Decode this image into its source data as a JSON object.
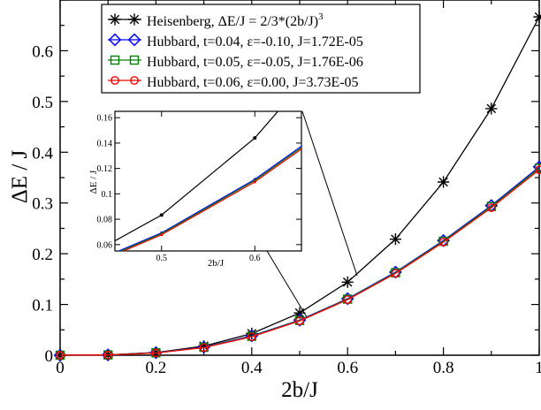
{
  "chart_data": {
    "type": "line",
    "xlabel": "2b/J",
    "ylabel": "ΔE / J",
    "xlim": [
      0,
      1
    ],
    "ylim": [
      0,
      0.7
    ],
    "xticks": [
      "0",
      "0.2",
      "0.4",
      "0.6",
      "0.8",
      "1"
    ],
    "yticks": [
      "0",
      "0.1",
      "0.2",
      "0.3",
      "0.4",
      "0.5",
      "0.6"
    ],
    "grid": false,
    "legend_position": "top-left",
    "x": [
      0,
      0.1,
      0.2,
      0.3,
      0.4,
      0.5,
      0.6,
      0.7,
      0.8,
      0.9,
      1.0
    ],
    "series": [
      {
        "name": "Heisenberg,  ΔE/J = 2/3*(2b/J)",
        "name_superscript": "3",
        "color": "#000000",
        "marker": "star",
        "values": [
          0,
          0.0007,
          0.0053,
          0.018,
          0.0427,
          0.0833,
          0.144,
          0.2287,
          0.3413,
          0.486,
          0.6667
        ]
      },
      {
        "name": "Hubbard,  t=0.04,  ε=-0.10, J=1.72E-05",
        "color": "#0000ff",
        "marker": "diamond",
        "values": [
          0,
          0.0007,
          0.005,
          0.016,
          0.0382,
          0.0692,
          0.1114,
          0.1637,
          0.226,
          0.295,
          0.3712
        ]
      },
      {
        "name": "Hubbard,  t=0.05,  ε=-0.05, J=1.76E-06",
        "color": "#008000",
        "marker": "square",
        "values": [
          0,
          0.0006,
          0.0047,
          0.0155,
          0.0373,
          0.0685,
          0.1105,
          0.1625,
          0.2245,
          0.293,
          0.3685
        ]
      },
      {
        "name": "Hubbard,  t=0.06,  ε=0.00,  J=3.73E-05",
        "color": "#ff0000",
        "marker": "circle",
        "values": [
          0,
          0.0005,
          0.0043,
          0.015,
          0.0364,
          0.0677,
          0.1094,
          0.1612,
          0.2228,
          0.2907,
          0.3655
        ]
      }
    ],
    "inset": {
      "xlabel": "2b/J",
      "ylabel": "ΔE / J",
      "xlim": [
        0.45,
        0.65
      ],
      "ylim": [
        0.055,
        0.165
      ],
      "xticks": [
        "0.5",
        "0.6"
      ],
      "yticks": [
        "0.06",
        "0.08",
        "0.1",
        "0.12",
        "0.14",
        "0.16"
      ]
    }
  }
}
